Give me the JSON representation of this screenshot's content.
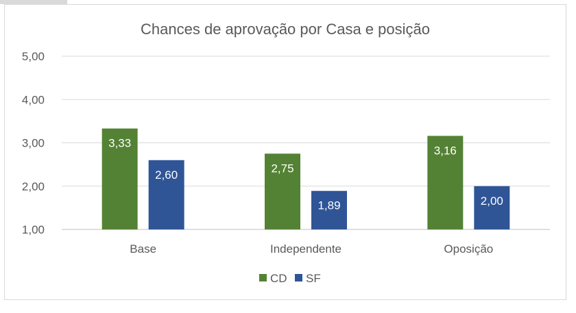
{
  "chart_data": {
    "type": "bar",
    "title": "Chances de aprovação por Casa e posição",
    "categories": [
      "Base",
      "Independente",
      "Oposição"
    ],
    "series": [
      {
        "name": "CD",
        "values": [
          3.33,
          2.75,
          3.16
        ],
        "labels": [
          "3,33",
          "2,75",
          "3,16"
        ],
        "color": "#548235"
      },
      {
        "name": "SF",
        "values": [
          2.6,
          1.89,
          2.0
        ],
        "labels": [
          "2,60",
          "1,89",
          "2,00"
        ],
        "color": "#2f5597"
      }
    ],
    "ylim": [
      1,
      5
    ],
    "yticks": [
      "1,00",
      "2,00",
      "3,00",
      "4,00",
      "5,00"
    ],
    "grid": true,
    "legend": "bottom",
    "xlabel": "",
    "ylabel": ""
  }
}
